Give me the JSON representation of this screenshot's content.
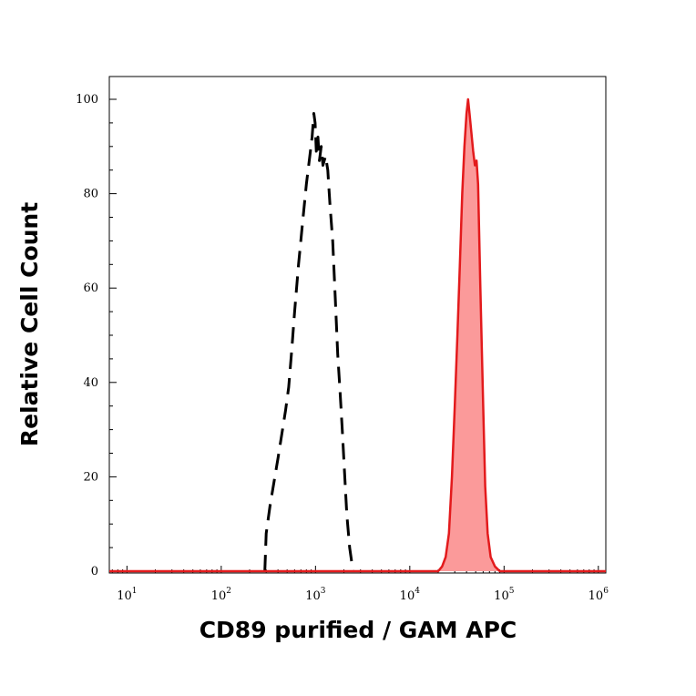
{
  "chart_data": {
    "type": "area",
    "xlabel": "CD89 purified  / GAM APC",
    "ylabel": "Relative Cell Count",
    "xscale": "log",
    "xlim": [
      6.5,
      1200000
    ],
    "ylim": [
      0,
      100
    ],
    "x_ticks": [
      {
        "value": 10,
        "base": "10",
        "exp": "1"
      },
      {
        "value": 100,
        "base": "10",
        "exp": "2"
      },
      {
        "value": 1000,
        "base": "10",
        "exp": "3"
      },
      {
        "value": 10000,
        "base": "10",
        "exp": "4"
      },
      {
        "value": 100000,
        "base": "10",
        "exp": "5"
      },
      {
        "value": 1000000,
        "base": "10",
        "exp": "6"
      }
    ],
    "y_ticks": [
      {
        "value": 0,
        "label": "0"
      },
      {
        "value": 20,
        "label": "20"
      },
      {
        "value": 40,
        "label": "40"
      },
      {
        "value": 60,
        "label": "60"
      },
      {
        "value": 80,
        "label": "80"
      },
      {
        "value": 100,
        "label": "100"
      }
    ],
    "grid": false,
    "series": [
      {
        "style": "dashed",
        "color": "#000000",
        "fill": "none",
        "points": [
          [
            290,
            0
          ],
          [
            300,
            8
          ],
          [
            330,
            14
          ],
          [
            400,
            24
          ],
          [
            480,
            34
          ],
          [
            520,
            39
          ],
          [
            560,
            47
          ],
          [
            600,
            55
          ],
          [
            660,
            65
          ],
          [
            730,
            74
          ],
          [
            800,
            82
          ],
          [
            870,
            88
          ],
          [
            920,
            92
          ],
          [
            960,
            97
          ],
          [
            990,
            95
          ],
          [
            1020,
            89
          ],
          [
            1060,
            92
          ],
          [
            1100,
            87
          ],
          [
            1150,
            90
          ],
          [
            1200,
            86
          ],
          [
            1280,
            88
          ],
          [
            1350,
            85
          ],
          [
            1420,
            78
          ],
          [
            1520,
            70
          ],
          [
            1620,
            58
          ],
          [
            1720,
            46
          ],
          [
            1820,
            38
          ],
          [
            1920,
            30
          ],
          [
            2020,
            22
          ],
          [
            2150,
            12
          ],
          [
            2300,
            5
          ],
          [
            2500,
            0
          ]
        ]
      },
      {
        "style": "solid",
        "color": "#e31a1c",
        "fill": "#fb9a9a",
        "points": [
          [
            6.5,
            0
          ],
          [
            20000,
            0
          ],
          [
            22000,
            1
          ],
          [
            24000,
            3
          ],
          [
            26000,
            8
          ],
          [
            28000,
            20
          ],
          [
            30000,
            35
          ],
          [
            32000,
            50
          ],
          [
            34000,
            65
          ],
          [
            36000,
            80
          ],
          [
            38000,
            90
          ],
          [
            40000,
            97
          ],
          [
            41500,
            100
          ],
          [
            43000,
            97
          ],
          [
            45000,
            93
          ],
          [
            47000,
            89
          ],
          [
            49000,
            86
          ],
          [
            51000,
            87
          ],
          [
            53000,
            82
          ],
          [
            56000,
            60
          ],
          [
            60000,
            35
          ],
          [
            63000,
            18
          ],
          [
            67000,
            8
          ],
          [
            72000,
            3
          ],
          [
            80000,
            1
          ],
          [
            90000,
            0
          ],
          [
            1200000,
            0
          ]
        ]
      }
    ]
  }
}
